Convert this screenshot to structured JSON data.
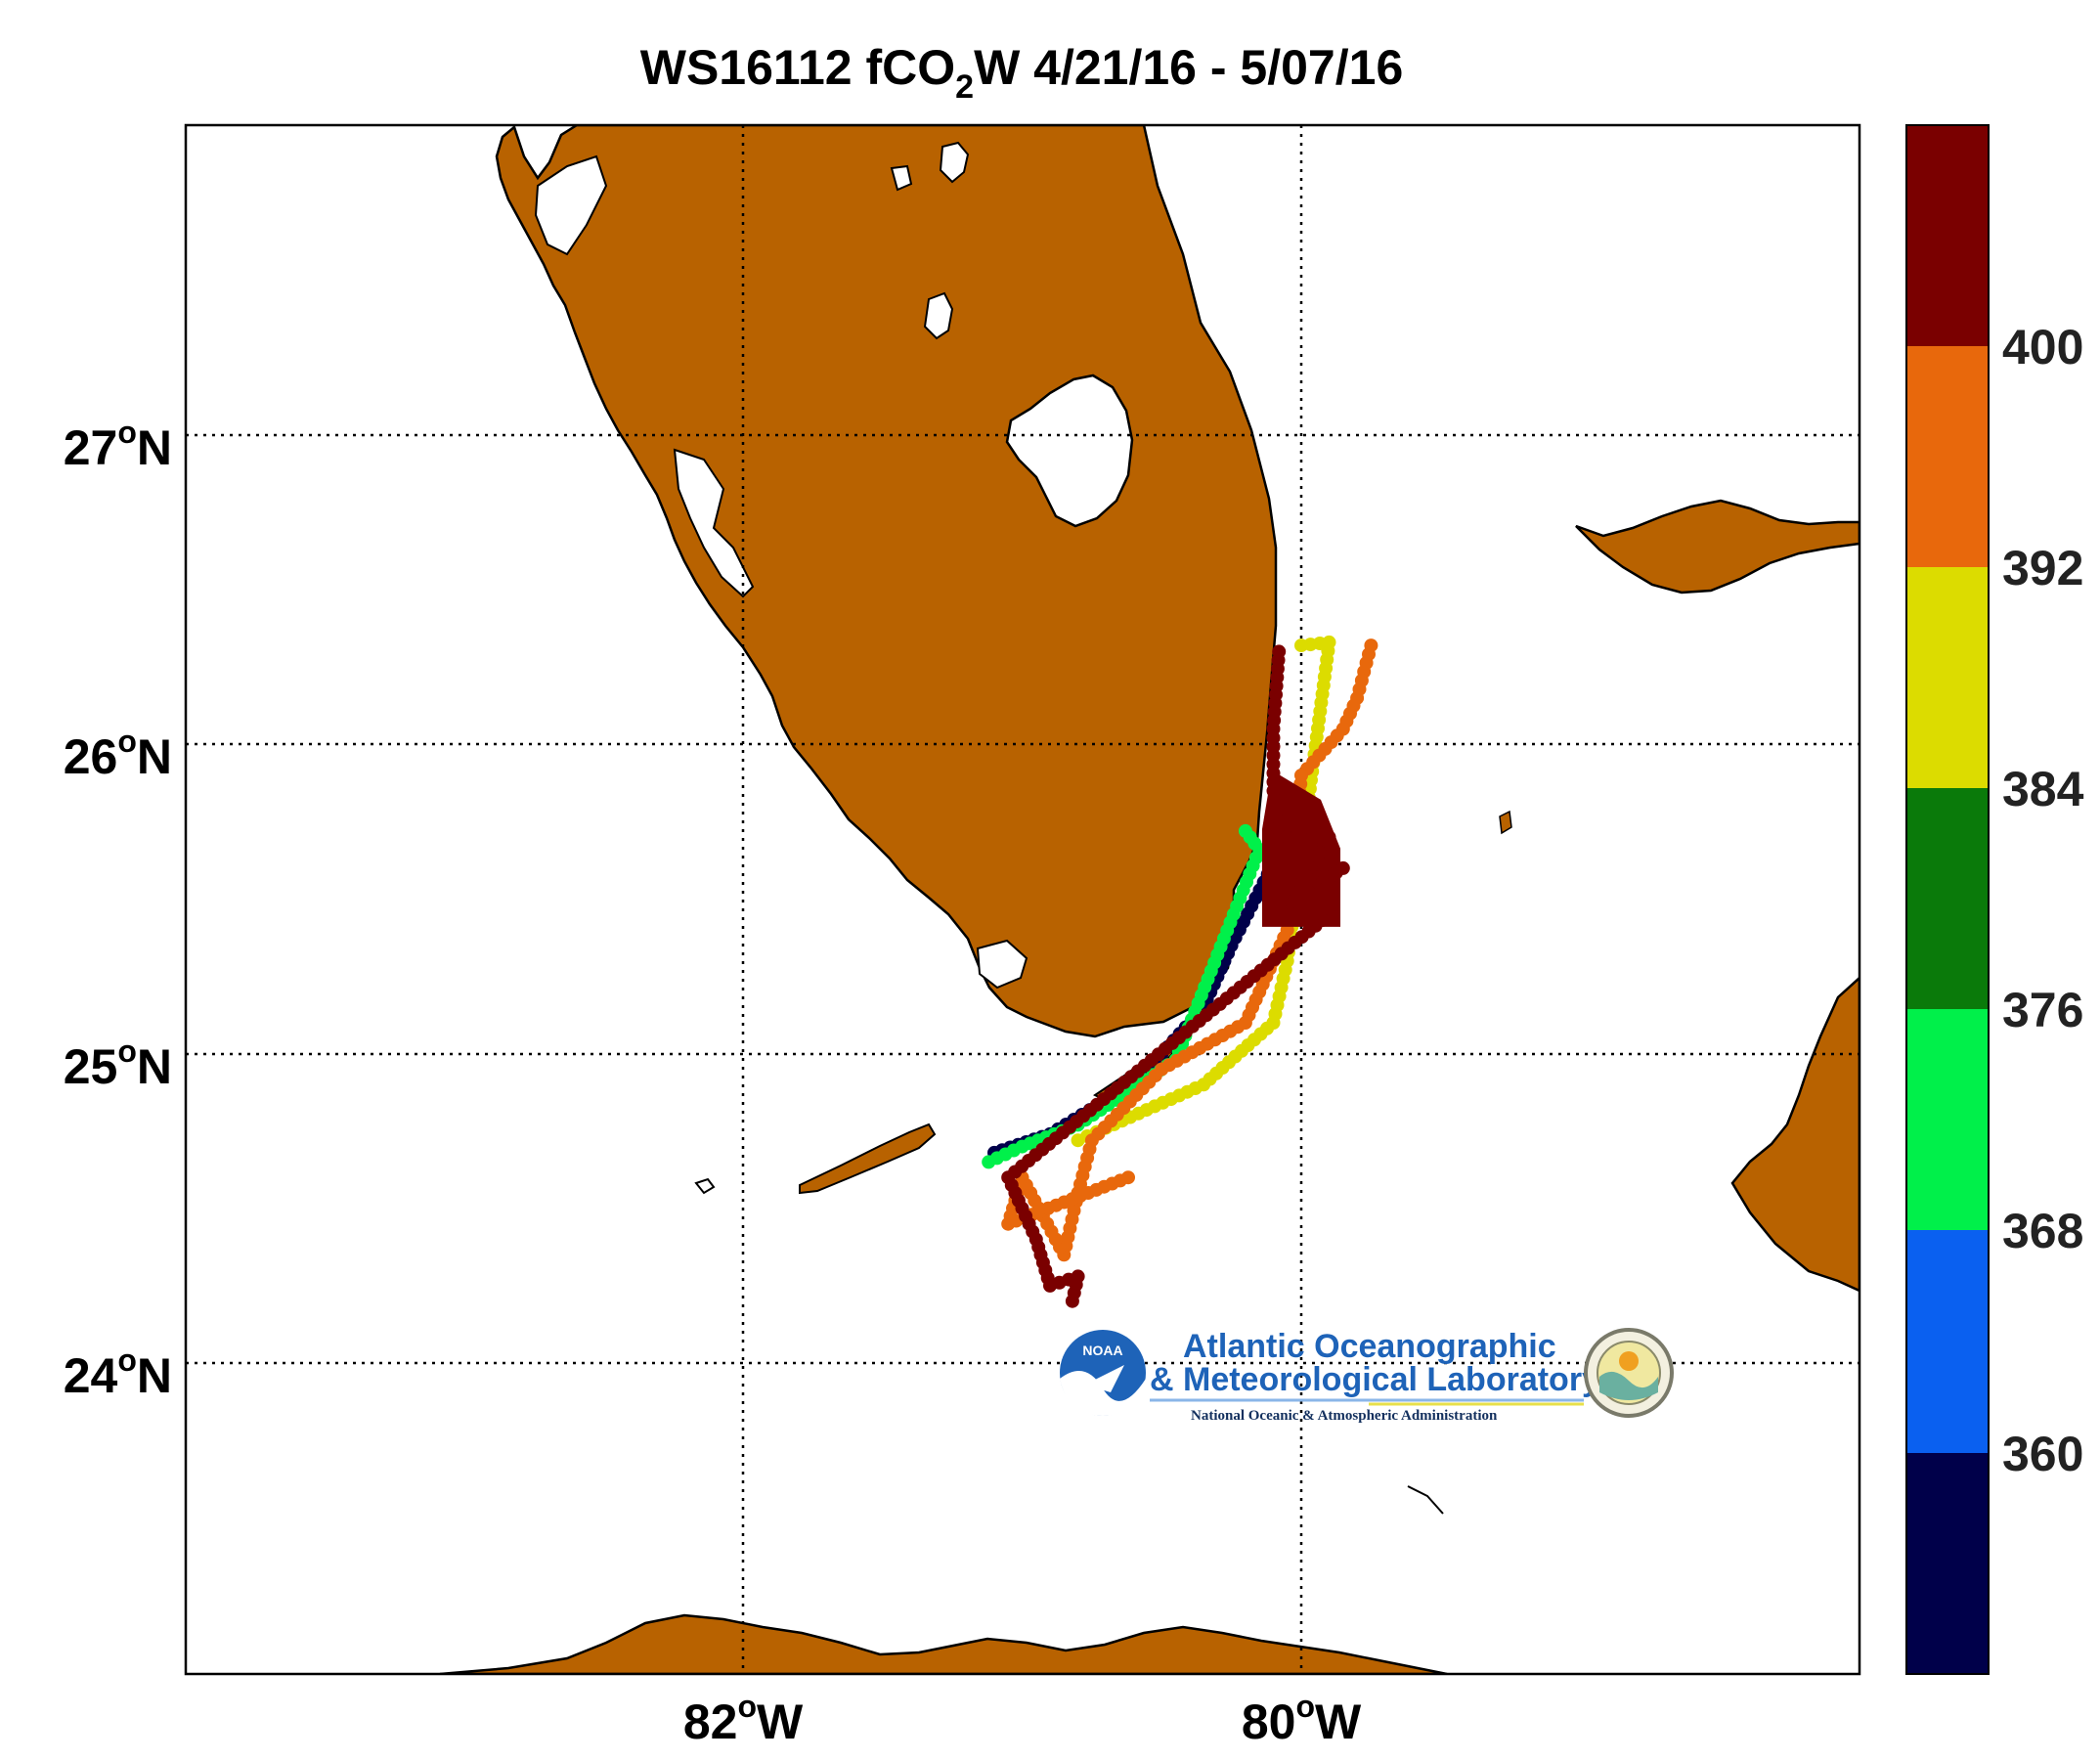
{
  "title": {
    "cruise": "WS16112",
    "var_main": "fCO",
    "var_sub": "2",
    "var_end": "W",
    "dates": "4/21/16 - 5/07/16"
  },
  "axes": {
    "y_ticks": [
      {
        "deg": "27",
        "hemi": "N"
      },
      {
        "deg": "26",
        "hemi": "N"
      },
      {
        "deg": "25",
        "hemi": "N"
      },
      {
        "deg": "24",
        "hemi": "N"
      }
    ],
    "x_ticks": [
      {
        "deg": "82",
        "hemi": "W"
      },
      {
        "deg": "80",
        "hemi": "W"
      }
    ],
    "degree_symbol": "o",
    "lon_range": [
      -84,
      -78
    ],
    "lat_range": [
      23,
      28
    ],
    "grid": "dotted",
    "land_color": "#b86200"
  },
  "colorbar": {
    "labels": [
      "400",
      "392",
      "384",
      "376",
      "368",
      "360"
    ],
    "colors": [
      "#7a0000",
      "#e8680c",
      "#dcdc00",
      "#0a7a0a",
      "#00f04a",
      "#0a60f0",
      "#00004a"
    ],
    "boundaries": [
      400,
      392,
      384,
      376,
      368,
      360
    ]
  },
  "logo": {
    "badge": "NOAA",
    "line1": "Atlantic Oceanographic",
    "line2": "& Meteorological Laboratory",
    "line3": "National Oceanic & Atmospheric Administration"
  },
  "colors": {
    "dark_red": "#7a0000",
    "orange": "#e8680c",
    "yellow": "#dcdc00",
    "dark_green": "#0a7a0a",
    "green": "#00f04a",
    "blue": "#0a60f0",
    "navy": "#00004a"
  },
  "chart_data": {
    "type": "scatter",
    "title": "WS16112 fCO2W 4/21/16 - 5/07/16",
    "xlabel": "",
    "ylabel": "",
    "xlim": [
      -84,
      -78
    ],
    "ylim": [
      23,
      28
    ],
    "color_scale": {
      "variable": "fCO2W",
      "min": 352,
      "max": 408,
      "step": 8
    },
    "series": [
      {
        "color": "navy",
        "approx_range": "<360",
        "points": [
          [
            -80.12,
            25.58
          ],
          [
            -80.25,
            25.35
          ],
          [
            -80.35,
            25.15
          ],
          [
            -80.5,
            25.0
          ],
          [
            -80.7,
            24.85
          ],
          [
            -80.9,
            24.74
          ],
          [
            -81.1,
            24.68
          ]
        ]
      },
      {
        "color": "green/blue",
        "approx_range": "360-384",
        "points": [
          [
            -80.2,
            25.72
          ],
          [
            -80.15,
            25.66
          ],
          [
            -80.45,
            24.98
          ],
          [
            -80.8,
            24.77
          ],
          [
            -81.0,
            24.7
          ],
          [
            -81.12,
            24.65
          ]
        ]
      },
      {
        "color": "yellow",
        "approx_range": "384-392",
        "points": [
          [
            -80.0,
            26.32
          ],
          [
            -79.9,
            26.33
          ],
          [
            -80.05,
            25.3
          ],
          [
            -80.1,
            25.1
          ],
          [
            -80.35,
            24.9
          ],
          [
            -80.7,
            24.76
          ],
          [
            -80.8,
            24.72
          ]
        ]
      },
      {
        "color": "orange",
        "approx_range": "392-400",
        "points": [
          [
            -79.75,
            26.32
          ],
          [
            -79.8,
            26.15
          ],
          [
            -79.85,
            26.05
          ],
          [
            -80.0,
            25.9
          ],
          [
            -80.05,
            25.4
          ],
          [
            -80.2,
            25.1
          ],
          [
            -80.5,
            24.95
          ],
          [
            -80.75,
            24.72
          ],
          [
            -80.8,
            24.55
          ],
          [
            -80.85,
            24.35
          ],
          [
            -81.0,
            24.6
          ],
          [
            -81.05,
            24.45
          ],
          [
            -80.62,
            24.6
          ]
        ]
      },
      {
        "color": "dark red",
        "approx_range": ">400",
        "points": [
          [
            -80.08,
            26.3
          ],
          [
            -80.1,
            26.05
          ],
          [
            -80.1,
            25.85
          ],
          [
            -80.08,
            25.7
          ],
          [
            -79.9,
            25.7
          ],
          [
            -80.0,
            25.55
          ],
          [
            -79.85,
            25.6
          ],
          [
            -80.1,
            25.45
          ],
          [
            -79.9,
            25.45
          ],
          [
            -81.05,
            24.6
          ],
          [
            -80.95,
            24.4
          ],
          [
            -80.9,
            24.25
          ],
          [
            -80.8,
            24.28
          ],
          [
            -80.82,
            24.2
          ]
        ]
      }
    ]
  }
}
